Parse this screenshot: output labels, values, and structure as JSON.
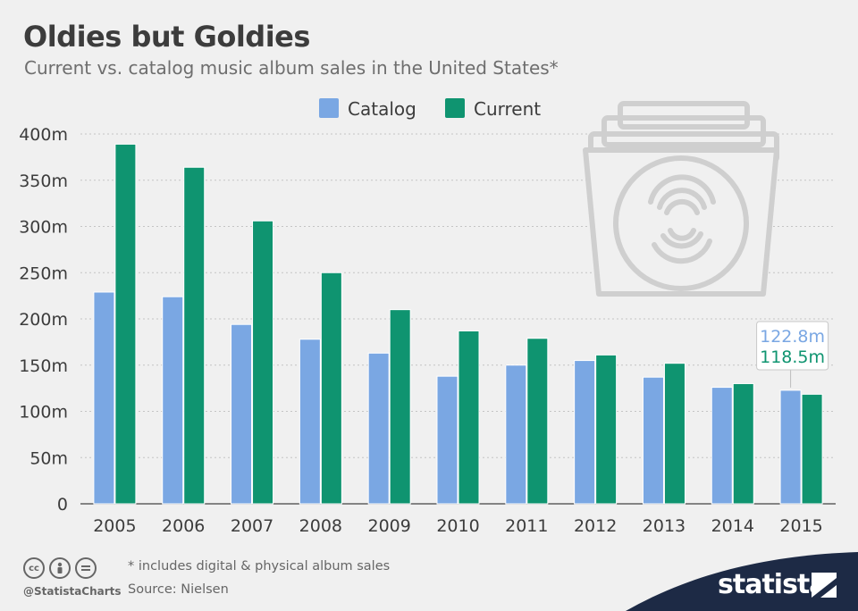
{
  "header": {
    "title": "Oldies but Goldies",
    "subtitle": "Current vs. catalog music album sales in the United States*"
  },
  "colors": {
    "catalog": "#7aa7e3",
    "current": "#0f9470",
    "background": "#f0f0f0",
    "brand_navy": "#1d2a45"
  },
  "chart_data": {
    "type": "bar",
    "title": "Oldies but Goldies",
    "subtitle": "Current vs. catalog music album sales in the United States*",
    "categories": [
      "2005",
      "2006",
      "2007",
      "2008",
      "2009",
      "2010",
      "2011",
      "2012",
      "2013",
      "2014",
      "2015"
    ],
    "series": [
      {
        "name": "Catalog",
        "values": [
          229,
          224,
          194,
          178,
          163,
          138,
          150,
          155,
          137,
          126,
          122.8
        ]
      },
      {
        "name": "Current",
        "values": [
          389,
          364,
          306,
          250,
          210,
          187,
          179,
          161,
          152,
          130,
          118.5
        ]
      }
    ],
    "ylim": [
      0,
      400
    ],
    "yticks": [
      0,
      50,
      100,
      150,
      200,
      250,
      300,
      350,
      400
    ],
    "ytick_labels": [
      "0",
      "50m",
      "100m",
      "150m",
      "200m",
      "250m",
      "300m",
      "350m",
      "400m"
    ],
    "xlabel": "",
    "ylabel": "",
    "grid": true,
    "legend": "top-center",
    "annotations": [
      {
        "category": "2015",
        "catalog_label": "122.8m",
        "current_label": "118.5m"
      }
    ]
  },
  "footer": {
    "note": "* includes digital & physical album sales",
    "source": "Source: Nielsen",
    "handle": "@StatistaCharts",
    "brand": "statista",
    "license_icons": [
      "cc-icon",
      "person-icon",
      "equals-icon"
    ]
  }
}
